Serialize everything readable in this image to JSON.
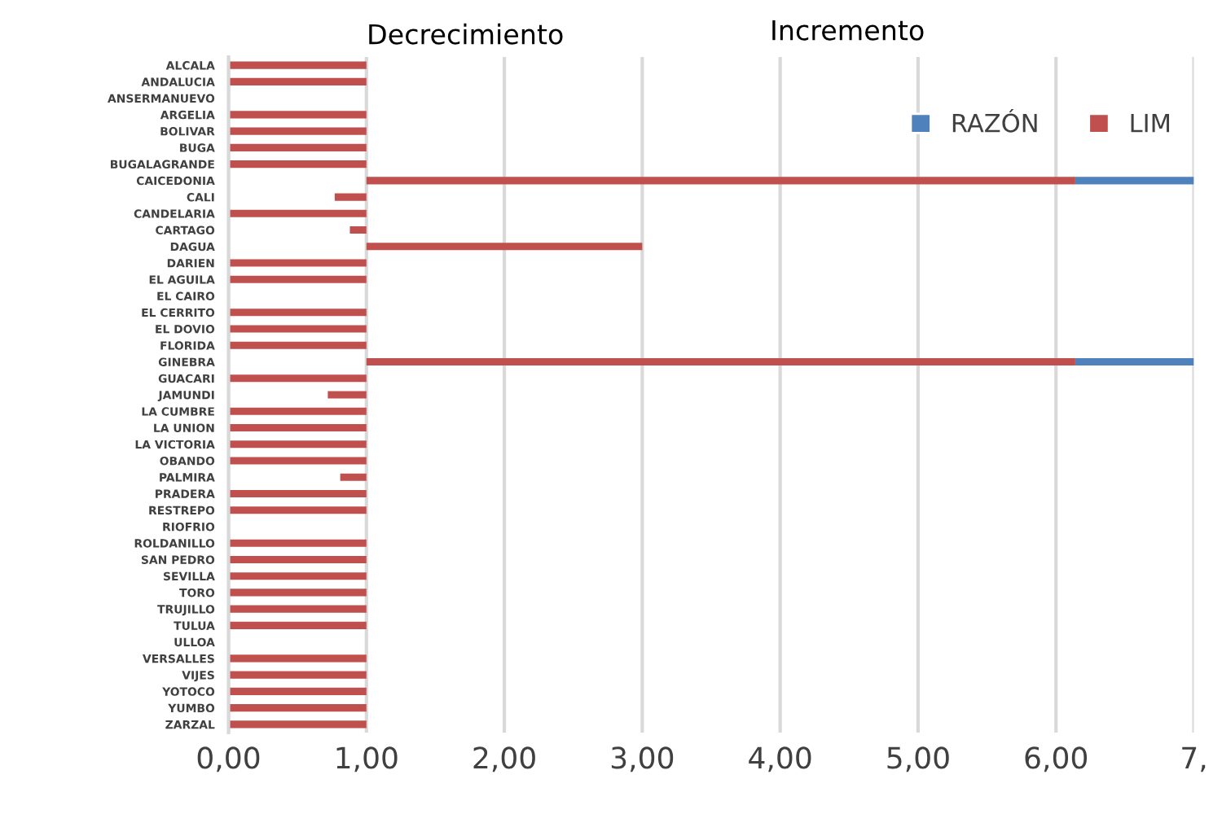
{
  "chart_data": {
    "type": "bar",
    "orientation": "horizontal",
    "categories": [
      "ALCALA",
      "ANDALUCIA",
      "ANSERMANUEVO",
      "ARGELIA",
      "BOLIVAR",
      "BUGA",
      "BUGALAGRANDE",
      "CAICEDONIA",
      "CALI",
      "CANDELARIA",
      "CARTAGO",
      "DAGUA",
      "DARIEN",
      "EL AGUILA",
      "EL CAIRO",
      "EL CERRITO",
      "EL DOVIO",
      "FLORIDA",
      "GINEBRA",
      "GUACARI",
      "JAMUNDI",
      "LA CUMBRE",
      "LA UNION",
      "LA VICTORIA",
      "OBANDO",
      "PALMIRA",
      "PRADERA",
      "RESTREPO",
      "RIOFRIO",
      "ROLDANILLO",
      "SAN PEDRO",
      "SEVILLA",
      "TORO",
      "TRUJILLO",
      "TULUA",
      "ULLOA",
      "VERSALLES",
      "VIJES",
      "YOTOCO",
      "YUMBO",
      "ZARZAL"
    ],
    "series": [
      {
        "name": "RAZÓN",
        "color": "#4f81bd",
        "base": [
          null,
          null,
          null,
          null,
          null,
          null,
          null,
          6.14,
          null,
          null,
          null,
          null,
          null,
          null,
          null,
          null,
          null,
          null,
          6.14,
          null,
          null,
          null,
          null,
          null,
          null,
          null,
          null,
          null,
          null,
          null,
          null,
          null,
          null,
          null,
          null,
          null,
          null,
          null,
          null,
          null,
          null
        ],
        "values": [
          null,
          null,
          null,
          null,
          null,
          null,
          null,
          0.86,
          null,
          null,
          null,
          null,
          null,
          null,
          null,
          null,
          null,
          null,
          0.86,
          null,
          null,
          null,
          null,
          null,
          null,
          null,
          null,
          null,
          null,
          null,
          null,
          null,
          null,
          null,
          null,
          null,
          null,
          null,
          null,
          null,
          null
        ]
      },
      {
        "name": "LIM",
        "color": "#c0504d",
        "base": [
          1,
          1,
          null,
          1,
          1,
          1,
          1,
          1,
          1,
          1,
          1,
          1,
          1,
          1,
          null,
          1,
          1,
          1,
          1,
          1,
          1,
          1,
          1,
          1,
          1,
          1,
          1,
          1,
          null,
          1,
          1,
          1,
          1,
          1,
          1,
          null,
          1,
          1,
          1,
          1,
          1
        ],
        "values": [
          -1,
          -1,
          null,
          -1,
          -1,
          -1,
          -1,
          5.14,
          -0.23,
          -1,
          -0.12,
          2,
          -1,
          -1,
          null,
          -1,
          -1,
          -1,
          5.14,
          -1,
          -0.28,
          -1,
          -1,
          -1,
          -1,
          -0.19,
          -1,
          -1,
          null,
          -1,
          -1,
          -1,
          -1,
          -1,
          -1,
          null,
          -1,
          -1,
          -1,
          -1,
          -1
        ]
      }
    ],
    "xlim": [
      0,
      7
    ],
    "xticks": [
      {
        "value": 0,
        "label": "0,00"
      },
      {
        "value": 1,
        "label": "1,00"
      },
      {
        "value": 2,
        "label": "2,00"
      },
      {
        "value": 3,
        "label": "3,00"
      },
      {
        "value": 4,
        "label": "4,00"
      },
      {
        "value": 5,
        "label": "5,00"
      },
      {
        "value": 6,
        "label": "6,00"
      },
      {
        "value": 7,
        "label": "7,"
      }
    ],
    "annotations": [
      "Decrecimiento",
      "Incremento"
    ],
    "grid": "x",
    "legend": "top right"
  }
}
